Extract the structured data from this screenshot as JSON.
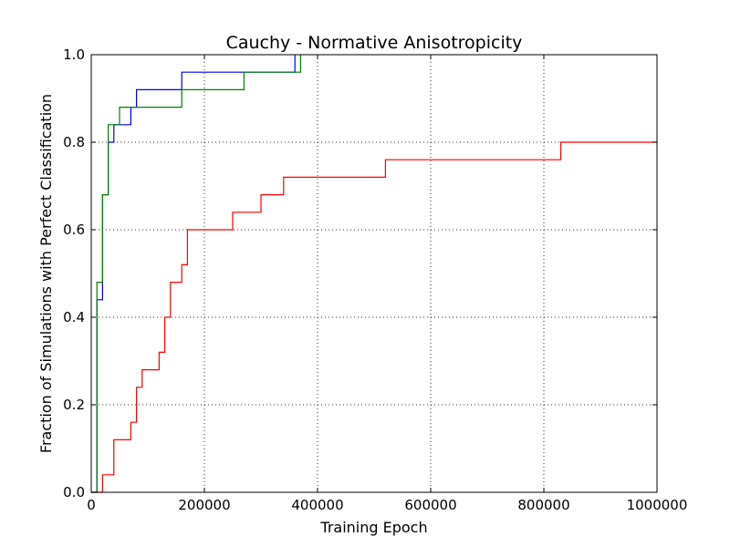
{
  "chart_data": {
    "type": "line",
    "title": "Cauchy - Normative Anisotropicity",
    "xlabel": "Training Epoch",
    "ylabel": "Fraction of Simulations with Perfect Classification",
    "xlim": [
      0,
      1000000
    ],
    "ylim": [
      0.0,
      1.0
    ],
    "x_ticks": [
      0,
      200000,
      400000,
      600000,
      800000,
      1000000
    ],
    "x_tick_labels": [
      "0",
      "200000",
      "400000",
      "600000",
      "800000",
      "1000000"
    ],
    "y_ticks": [
      0.0,
      0.2,
      0.4,
      0.6,
      0.8,
      1.0
    ],
    "y_tick_labels": [
      "0.0",
      "0.2",
      "0.4",
      "0.6",
      "0.8",
      "1.0"
    ],
    "grid": true,
    "step": "post",
    "series": [
      {
        "color": "#0000ff",
        "x": [
          0,
          10000,
          20000,
          30000,
          40000,
          70000,
          80000,
          160000,
          360000
        ],
        "y": [
          0.0,
          0.44,
          0.68,
          0.8,
          0.84,
          0.88,
          0.92,
          0.96,
          1.0
        ]
      },
      {
        "color": "#008000",
        "x": [
          0,
          10000,
          20000,
          30000,
          50000,
          160000,
          270000,
          370000
        ],
        "y": [
          0.0,
          0.48,
          0.68,
          0.84,
          0.88,
          0.92,
          0.96,
          1.0
        ]
      },
      {
        "color": "#ff0000",
        "x": [
          0,
          20000,
          40000,
          70000,
          80000,
          90000,
          120000,
          130000,
          140000,
          160000,
          170000,
          250000,
          300000,
          340000,
          520000,
          830000,
          1000000
        ],
        "y": [
          0.0,
          0.04,
          0.12,
          0.16,
          0.24,
          0.28,
          0.32,
          0.4,
          0.48,
          0.52,
          0.6,
          0.64,
          0.68,
          0.72,
          0.76,
          0.8,
          0.8
        ]
      }
    ]
  }
}
